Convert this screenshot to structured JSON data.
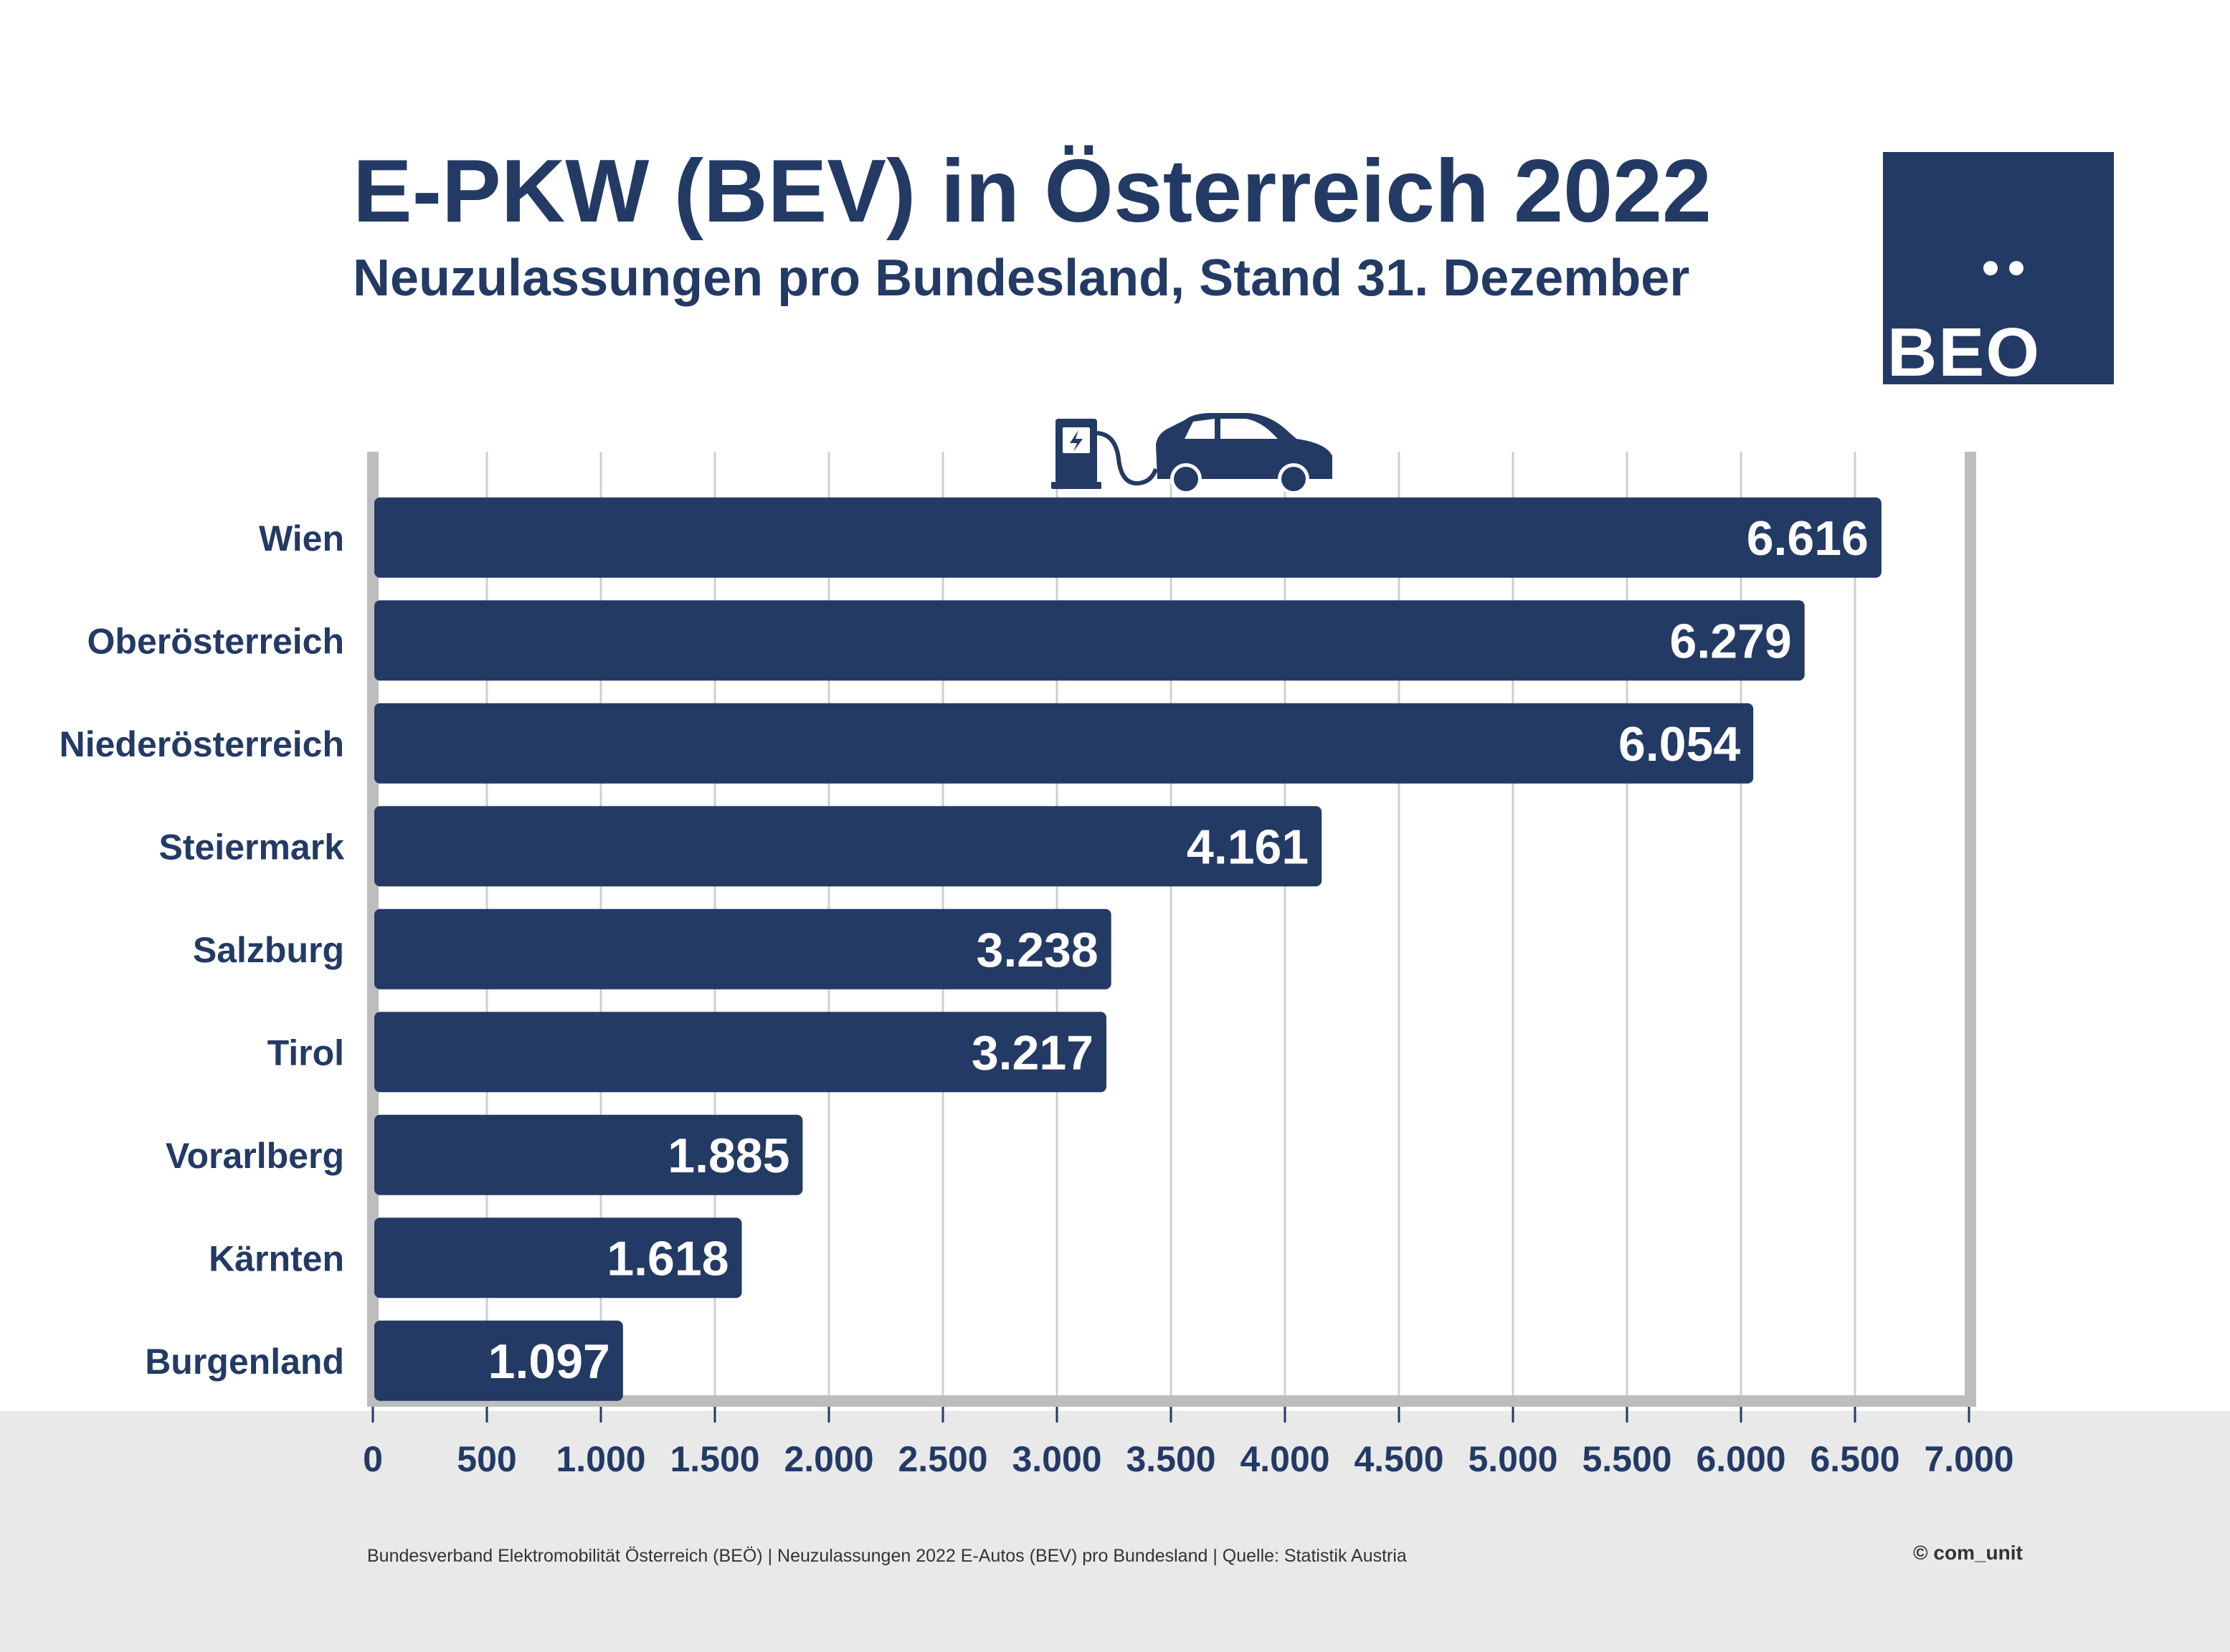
{
  "header": {
    "title": "E-PKW (BEV) in Österreich 2022",
    "subtitle": "Neuzulassungen pro Bundesland, Stand 31. Dezember"
  },
  "logo": {
    "text": "BEO",
    "icon": "beo-logo"
  },
  "illustration": {
    "icons": [
      "charging-station-icon",
      "electric-car-icon"
    ]
  },
  "chart_data": {
    "type": "bar",
    "orientation": "horizontal",
    "categories": [
      "Wien",
      "Oberösterreich",
      "Niederösterreich",
      "Steiermark",
      "Salzburg",
      "Tirol",
      "Vorarlberg",
      "Kärnten",
      "Burgenland"
    ],
    "values": [
      6616,
      6279,
      6054,
      4161,
      3238,
      3217,
      1885,
      1618,
      1097
    ],
    "value_labels": [
      "6.616",
      "6.279",
      "6.054",
      "4.161",
      "3.238",
      "3.217",
      "1.885",
      "1.618",
      "1.097"
    ],
    "xticks": [
      0,
      500,
      1000,
      1500,
      2000,
      2500,
      3000,
      3500,
      4000,
      4500,
      5000,
      5500,
      6000,
      6500,
      7000
    ],
    "xtick_labels": [
      "0",
      "500",
      "1.000",
      "1.500",
      "2.000",
      "2.500",
      "3.000",
      "3.500",
      "4.000",
      "4.500",
      "5.000",
      "5.500",
      "6.000",
      "6.500",
      "7.000"
    ],
    "xlim": [
      0,
      7000
    ],
    "grid": true,
    "title": "E-PKW (BEV) in Österreich 2022",
    "subtitle": "Neuzulassungen pro Bundesland, Stand 31. Dezember"
  },
  "colors": {
    "bar": "#233a65",
    "text": "#233a65",
    "grid": "#cfcfcf",
    "axis": "#bdbdbd",
    "footer_band": "#e9e9e9",
    "bar_label": "#ffffff"
  },
  "footer": {
    "source": "Bundesverband Elektromobilität Österreich (BEÖ) | Neuzulassungen 2022 E-Autos (BEV) pro Bundesland | Quelle: Statistik Austria",
    "copyright": "© com_unit"
  }
}
